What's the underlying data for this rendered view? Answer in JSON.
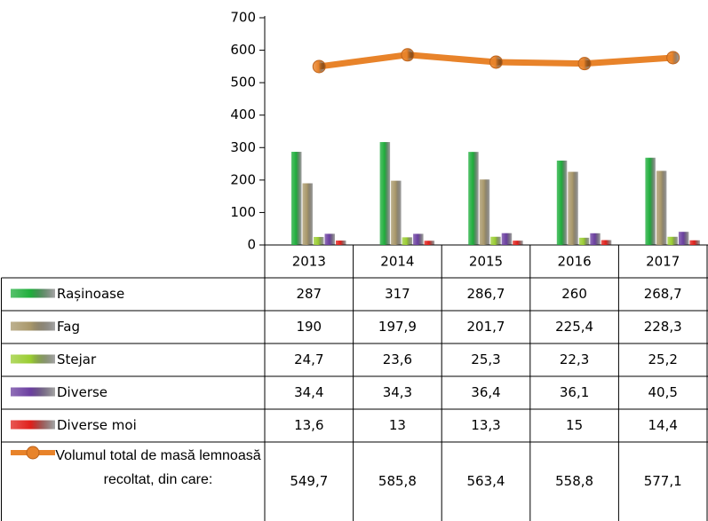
{
  "chart_data": {
    "type": "bar",
    "categories": [
      "2013",
      "2014",
      "2015",
      "2016",
      "2017"
    ],
    "ylim": [
      0,
      700
    ],
    "yticks": [
      0,
      100,
      200,
      300,
      400,
      500,
      600,
      700
    ],
    "series": [
      {
        "name": "Rașinoase",
        "color": "#1fae3c",
        "values": [
          287,
          317,
          286.7,
          260,
          268.7
        ],
        "value_labels": [
          "287",
          "317",
          "286,7",
          "260",
          "268,7"
        ]
      },
      {
        "name": "Fag",
        "color": "#a8976a",
        "values": [
          190,
          197.9,
          201.7,
          225.4,
          228.3
        ],
        "value_labels": [
          "190",
          "197,9",
          "201,7",
          "225,4",
          "228,3"
        ]
      },
      {
        "name": "Stejar",
        "color": "#9acd32",
        "values": [
          24.7,
          23.6,
          25.3,
          22.3,
          25.2
        ],
        "value_labels": [
          "24,7",
          "23,6",
          "25,3",
          "22,3",
          "25,2"
        ]
      },
      {
        "name": "Diverse",
        "color": "#6b3fa0",
        "values": [
          34.4,
          34.3,
          36.4,
          36.1,
          40.5
        ],
        "value_labels": [
          "34,4",
          "34,3",
          "36,4",
          "36,1",
          "40,5"
        ]
      },
      {
        "name": "Diverse moi",
        "color": "#e0201b",
        "values": [
          13.6,
          13,
          13.3,
          15,
          14.4
        ],
        "value_labels": [
          "13,6",
          "13",
          "13,3",
          "15",
          "14,4"
        ]
      },
      {
        "name": "Volumul total de masă lemnoasă recoltat, din care:",
        "type": "line",
        "color": "#e8832a",
        "values": [
          549.7,
          585.8,
          563.4,
          558.8,
          577.1
        ],
        "value_labels": [
          "549,7",
          "585,8",
          "563,4",
          "558,8",
          "577,1"
        ]
      }
    ]
  }
}
